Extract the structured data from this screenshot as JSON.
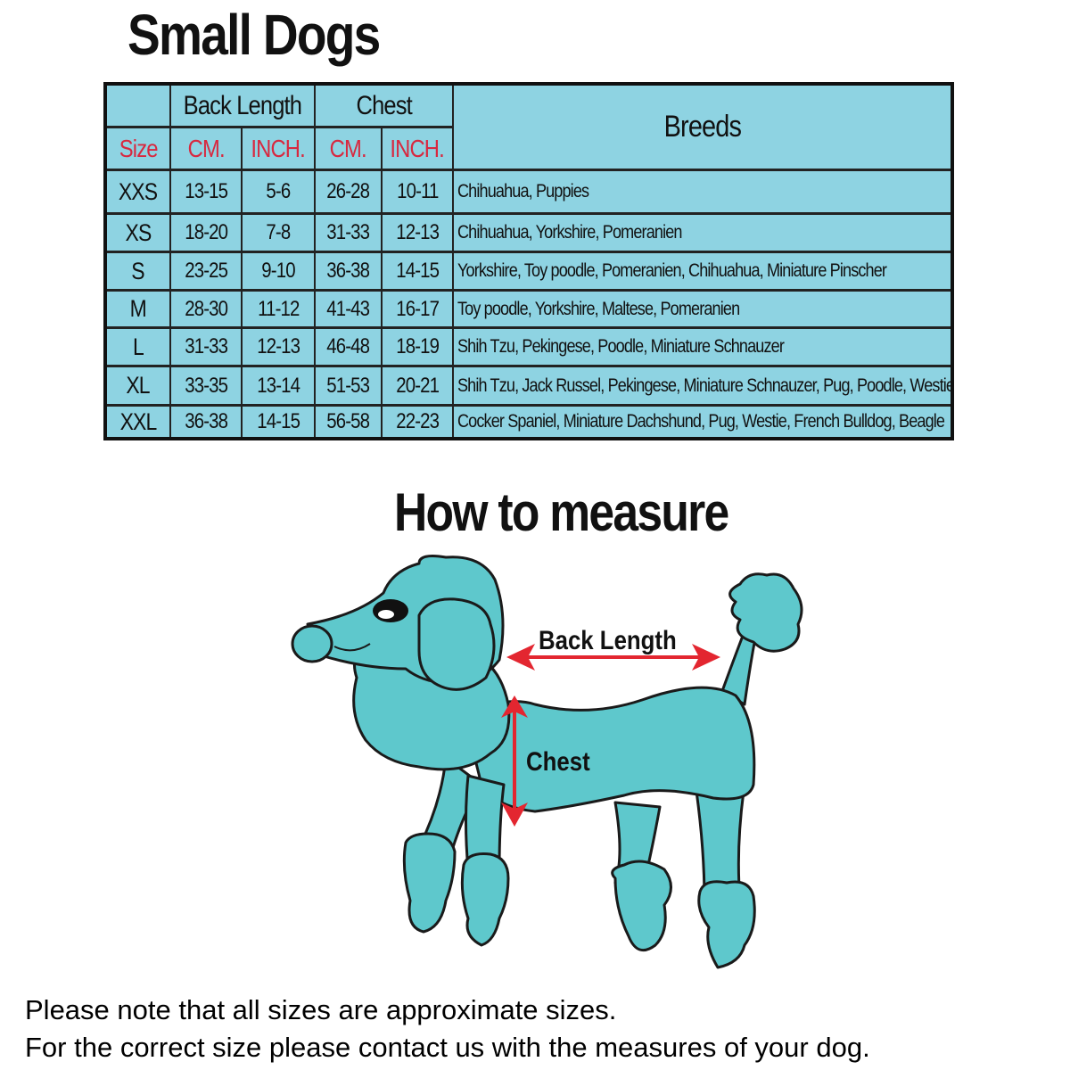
{
  "title": "Small Dogs",
  "table": {
    "group_headers": {
      "back_length": "Back Length",
      "chest": "Chest",
      "breeds": "Breeds"
    },
    "sub_headers": [
      "Size",
      "CM.",
      "INCH.",
      "CM.",
      "INCH."
    ],
    "rows": [
      {
        "size": "XXS",
        "back_cm": "13-15",
        "back_inch": "5-6",
        "chest_cm": "26-28",
        "chest_inch": "10-11",
        "breeds": "Chihuahua, Puppies"
      },
      {
        "size": "XS",
        "back_cm": "18-20",
        "back_inch": "7-8",
        "chest_cm": "31-33",
        "chest_inch": "12-13",
        "breeds": "Chihuahua, Yorkshire, Pomeranien"
      },
      {
        "size": "S",
        "back_cm": "23-25",
        "back_inch": "9-10",
        "chest_cm": "36-38",
        "chest_inch": "14-15",
        "breeds": "Yorkshire, Toy poodle, Pomeranien, Chihuahua, Miniature Pinscher"
      },
      {
        "size": "M",
        "back_cm": "28-30",
        "back_inch": "11-12",
        "chest_cm": "41-43",
        "chest_inch": "16-17",
        "breeds": "Toy poodle, Yorkshire, Maltese, Pomeranien"
      },
      {
        "size": "L",
        "back_cm": "31-33",
        "back_inch": "12-13",
        "chest_cm": "46-48",
        "chest_inch": "18-19",
        "breeds": "Shih Tzu, Pekingese, Poodle, Miniature Schnauzer"
      },
      {
        "size": "XL",
        "back_cm": "33-35",
        "back_inch": "13-14",
        "chest_cm": "51-53",
        "chest_inch": "20-21",
        "breeds": "Shih Tzu, Jack Russel, Pekingese, Miniature Schnauzer, Pug, Poodle, Westie"
      },
      {
        "size": "XXL",
        "back_cm": "36-38",
        "back_inch": "14-15",
        "chest_cm": "56-58",
        "chest_inch": "22-23",
        "breeds": "Cocker Spaniel, Miniature Dachshund, Pug, Westie, French Bulldog, Beagle"
      }
    ]
  },
  "how_to": {
    "title": "How to measure",
    "back_length_label": "Back Length",
    "chest_label": "Chest"
  },
  "notes": [
    "Please note that all sizes are approximate sizes.",
    "For the correct size please contact us with the measures of your dog."
  ],
  "colors": {
    "table_bg": "#8ed3e2",
    "header_red": "#d8283f",
    "dog": "#5ec8cc",
    "arrow": "#e32630"
  }
}
